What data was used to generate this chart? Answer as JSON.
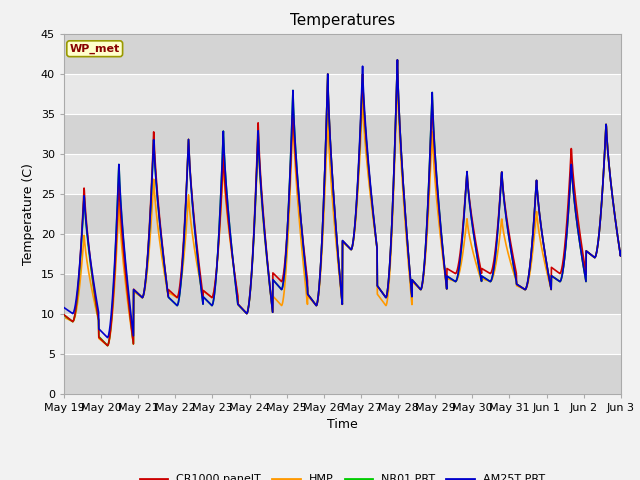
{
  "title": "Temperatures",
  "ylabel": "Temperature (C)",
  "xlabel": "Time",
  "annotation": "WP_met",
  "ylim": [
    0,
    45
  ],
  "yticks": [
    0,
    5,
    10,
    15,
    20,
    25,
    30,
    35,
    40,
    45
  ],
  "fig_bg_color": "#f2f2f2",
  "plot_bg_color": "#e8e8e8",
  "band_colors": [
    "#d4d4d4",
    "#e8e8e8"
  ],
  "legend": [
    "CR1000 panelT",
    "HMP",
    "NR01 PRT",
    "AM25T PRT"
  ],
  "line_colors": [
    "#cc0000",
    "#ff9900",
    "#00cc00",
    "#0000cc"
  ],
  "line_width": 1.2,
  "x_labels": [
    "May 19",
    "May 20",
    "May 21",
    "May 22",
    "May 23",
    "May 24",
    "May 25",
    "May 26",
    "May 27",
    "May 28",
    "May 29",
    "May 30",
    "May 31",
    "Jun 1",
    "Jun 2",
    "Jun 3"
  ],
  "daily_peaks_cr1000": [
    26,
    27,
    33,
    32,
    30,
    34,
    36,
    40,
    40,
    42,
    37,
    28,
    28,
    27,
    31,
    34
  ],
  "daily_mins_cr1000": [
    9,
    6,
    12,
    12,
    12,
    10,
    14,
    11,
    18,
    12,
    13,
    15,
    15,
    13,
    15,
    17
  ],
  "daily_peaks_hmp": [
    20,
    24,
    27,
    25,
    29,
    32,
    35,
    35,
    37,
    40,
    33,
    22,
    22,
    23,
    29,
    34
  ],
  "daily_mins_hmp": [
    9,
    6,
    12,
    12,
    12,
    10,
    11,
    11,
    18,
    11,
    13,
    14,
    14,
    13,
    14,
    17
  ],
  "daily_peaks_nr01": [
    25,
    29,
    32,
    32,
    33,
    33,
    38,
    40,
    40,
    42,
    38,
    28,
    28,
    27,
    29,
    34
  ],
  "daily_mins_nr01": [
    9,
    6,
    12,
    11,
    11,
    10,
    13,
    11,
    18,
    12,
    13,
    14,
    14,
    13,
    14,
    17
  ],
  "daily_peaks_am25t": [
    25,
    29,
    32,
    32,
    33,
    33,
    38,
    40,
    41,
    42,
    38,
    28,
    28,
    27,
    29,
    34
  ],
  "daily_mins_am25t": [
    10,
    7,
    12,
    11,
    11,
    10,
    13,
    11,
    18,
    12,
    13,
    14,
    14,
    13,
    14,
    17
  ]
}
